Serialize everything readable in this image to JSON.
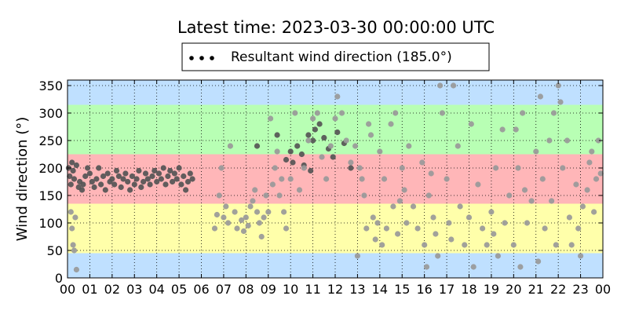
{
  "chart_data": {
    "type": "scatter",
    "title": "Latest time: 2023-03-30 00:00:00 UTC",
    "xlabel": "",
    "ylabel": "Wind direction (°)",
    "xlim": [
      0,
      24
    ],
    "ylim": [
      0,
      360
    ],
    "x_ticks": [
      0,
      1,
      2,
      3,
      4,
      5,
      6,
      7,
      8,
      9,
      10,
      11,
      12,
      13,
      14,
      15,
      16,
      17,
      18,
      19,
      20,
      21,
      22,
      23,
      24
    ],
    "x_tick_labels": [
      "00",
      "01",
      "02",
      "03",
      "04",
      "05",
      "06",
      "07",
      "08",
      "09",
      "10",
      "11",
      "12",
      "13",
      "14",
      "15",
      "16",
      "17",
      "18",
      "19",
      "20",
      "21",
      "22",
      "23",
      "00"
    ],
    "y_ticks": [
      0,
      50,
      100,
      150,
      200,
      250,
      300,
      350
    ],
    "grid": true,
    "legend": {
      "placement": "top-center",
      "label": "Resultant wind direction (185.0°)"
    },
    "sector_bands": [
      {
        "from": 0,
        "to": 45,
        "color": "#bfe0ff"
      },
      {
        "from": 45,
        "to": 135,
        "color": "#ffffaa"
      },
      {
        "from": 135,
        "to": 225,
        "color": "#ffb6b8"
      },
      {
        "from": 225,
        "to": 315,
        "color": "#b8ffb4"
      },
      {
        "from": 315,
        "to": 360,
        "color": "#bfe0ff"
      }
    ],
    "series": [
      {
        "color": "#555555",
        "points": [
          [
            0.05,
            200
          ],
          [
            0.1,
            185
          ],
          [
            0.15,
            170
          ],
          [
            0.2,
            210
          ],
          [
            0.25,
            195
          ],
          [
            0.3,
            180
          ],
          [
            0.4,
            205
          ],
          [
            0.5,
            165
          ],
          [
            0.55,
            175
          ],
          [
            0.65,
            160
          ],
          [
            0.7,
            170
          ],
          [
            0.8,
            185
          ],
          [
            0.9,
            200
          ],
          [
            1.0,
            190
          ],
          [
            1.1,
            175
          ],
          [
            1.2,
            165
          ],
          [
            1.3,
            180
          ],
          [
            1.4,
            200
          ],
          [
            1.5,
            170
          ],
          [
            1.6,
            185
          ],
          [
            1.7,
            160
          ],
          [
            1.8,
            190
          ],
          [
            1.9,
            175
          ],
          [
            2.0,
            180
          ],
          [
            2.1,
            170
          ],
          [
            2.2,
            195
          ],
          [
            2.3,
            185
          ],
          [
            2.4,
            165
          ],
          [
            2.5,
            180
          ],
          [
            2.6,
            190
          ],
          [
            2.7,
            175
          ],
          [
            2.8,
            160
          ],
          [
            2.9,
            185
          ],
          [
            3.0,
            170
          ],
          [
            3.1,
            180
          ],
          [
            3.2,
            195
          ],
          [
            3.3,
            165
          ],
          [
            3.4,
            175
          ],
          [
            3.5,
            190
          ],
          [
            3.6,
            180
          ],
          [
            3.7,
            170
          ],
          [
            3.8,
            185
          ],
          [
            3.9,
            195
          ],
          [
            4.0,
            175
          ],
          [
            4.1,
            190
          ],
          [
            4.2,
            180
          ],
          [
            4.3,
            200
          ],
          [
            4.4,
            170
          ],
          [
            4.5,
            185
          ],
          [
            4.6,
            195
          ],
          [
            4.7,
            175
          ],
          [
            4.8,
            190
          ],
          [
            4.9,
            180
          ],
          [
            5.0,
            200
          ],
          [
            5.1,
            170
          ],
          [
            5.2,
            185
          ],
          [
            5.3,
            160
          ],
          [
            5.4,
            175
          ],
          [
            5.5,
            190
          ],
          [
            5.6,
            180
          ],
          [
            9.8,
            215
          ],
          [
            10.0,
            230
          ],
          [
            10.1,
            210
          ],
          [
            10.3,
            240
          ],
          [
            10.5,
            225
          ],
          [
            10.6,
            205
          ],
          [
            10.8,
            260
          ],
          [
            11.0,
            250
          ],
          [
            11.1,
            270
          ],
          [
            11.3,
            280
          ],
          [
            11.5,
            255
          ],
          [
            11.7,
            235
          ],
          [
            11.9,
            220
          ],
          [
            12.1,
            265
          ],
          [
            12.4,
            245
          ],
          [
            12.7,
            200
          ],
          [
            8.5,
            240
          ],
          [
            9.4,
            260
          ],
          [
            10.9,
            195
          ]
        ]
      },
      {
        "color": "#999999",
        "points": [
          [
            0.15,
            120
          ],
          [
            0.2,
            90
          ],
          [
            0.25,
            60
          ],
          [
            0.3,
            50
          ],
          [
            0.35,
            110
          ],
          [
            0.4,
            15
          ],
          [
            6.6,
            90
          ],
          [
            6.7,
            115
          ],
          [
            6.8,
            150
          ],
          [
            6.9,
            200
          ],
          [
            7.0,
            110
          ],
          [
            7.1,
            130
          ],
          [
            7.2,
            100
          ],
          [
            7.3,
            240
          ],
          [
            7.5,
            120
          ],
          [
            7.6,
            90
          ],
          [
            7.8,
            105
          ],
          [
            7.9,
            85
          ],
          [
            8.0,
            110
          ],
          [
            8.1,
            95
          ],
          [
            8.2,
            130
          ],
          [
            8.3,
            140
          ],
          [
            8.4,
            160
          ],
          [
            8.5,
            120
          ],
          [
            8.6,
            100
          ],
          [
            8.7,
            75
          ],
          [
            8.8,
            110
          ],
          [
            8.9,
            150
          ],
          [
            9.0,
            120
          ],
          [
            9.1,
            290
          ],
          [
            9.2,
            170
          ],
          [
            9.3,
            200
          ],
          [
            9.4,
            230
          ],
          [
            9.5,
            150
          ],
          [
            9.6,
            180
          ],
          [
            9.7,
            120
          ],
          [
            9.8,
            90
          ],
          [
            10.0,
            180
          ],
          [
            10.2,
            300
          ],
          [
            10.4,
            160
          ],
          [
            10.6,
            200
          ],
          [
            10.8,
            250
          ],
          [
            11.0,
            290
          ],
          [
            11.2,
            300
          ],
          [
            11.4,
            220
          ],
          [
            11.6,
            180
          ],
          [
            11.8,
            240
          ],
          [
            12.0,
            290
          ],
          [
            12.1,
            330
          ],
          [
            12.3,
            300
          ],
          [
            12.5,
            250
          ],
          [
            12.7,
            210
          ],
          [
            12.9,
            240
          ],
          [
            13.0,
            40
          ],
          [
            13.1,
            200
          ],
          [
            13.2,
            180
          ],
          [
            13.3,
            150
          ],
          [
            13.4,
            90
          ],
          [
            13.5,
            280
          ],
          [
            13.6,
            260
          ],
          [
            13.7,
            110
          ],
          [
            13.8,
            70
          ],
          [
            13.9,
            100
          ],
          [
            14.0,
            230
          ],
          [
            14.1,
            60
          ],
          [
            14.2,
            180
          ],
          [
            14.3,
            90
          ],
          [
            14.5,
            280
          ],
          [
            14.6,
            130
          ],
          [
            14.7,
            300
          ],
          [
            14.8,
            80
          ],
          [
            14.9,
            140
          ],
          [
            15.0,
            200
          ],
          [
            15.1,
            160
          ],
          [
            15.2,
            100
          ],
          [
            15.3,
            240
          ],
          [
            15.5,
            130
          ],
          [
            15.7,
            90
          ],
          [
            15.9,
            210
          ],
          [
            16.0,
            60
          ],
          [
            16.1,
            20
          ],
          [
            16.2,
            150
          ],
          [
            16.3,
            190
          ],
          [
            16.4,
            110
          ],
          [
            16.5,
            80
          ],
          [
            16.6,
            40
          ],
          [
            16.7,
            350
          ],
          [
            16.8,
            300
          ],
          [
            17.0,
            180
          ],
          [
            17.1,
            100
          ],
          [
            17.2,
            70
          ],
          [
            17.3,
            350
          ],
          [
            17.5,
            240
          ],
          [
            17.6,
            130
          ],
          [
            17.8,
            60
          ],
          [
            18.0,
            110
          ],
          [
            18.1,
            280
          ],
          [
            18.2,
            20
          ],
          [
            18.4,
            170
          ],
          [
            18.6,
            90
          ],
          [
            18.8,
            60
          ],
          [
            19.0,
            120
          ],
          [
            19.1,
            80
          ],
          [
            19.2,
            200
          ],
          [
            19.3,
            40
          ],
          [
            19.5,
            270
          ],
          [
            19.6,
            100
          ],
          [
            19.8,
            150
          ],
          [
            20.0,
            60
          ],
          [
            20.1,
            270
          ],
          [
            20.2,
            200
          ],
          [
            20.3,
            20
          ],
          [
            20.4,
            300
          ],
          [
            20.5,
            160
          ],
          [
            20.6,
            100
          ],
          [
            20.8,
            140
          ],
          [
            21.0,
            230
          ],
          [
            21.1,
            30
          ],
          [
            21.2,
            330
          ],
          [
            21.3,
            180
          ],
          [
            21.4,
            90
          ],
          [
            21.6,
            250
          ],
          [
            21.7,
            140
          ],
          [
            21.8,
            300
          ],
          [
            21.9,
            60
          ],
          [
            22.0,
            350
          ],
          [
            22.1,
            320
          ],
          [
            22.2,
            200
          ],
          [
            22.4,
            250
          ],
          [
            22.5,
            110
          ],
          [
            22.6,
            60
          ],
          [
            22.8,
            170
          ],
          [
            22.9,
            90
          ],
          [
            23.0,
            40
          ],
          [
            23.1,
            130
          ],
          [
            23.3,
            160
          ],
          [
            23.4,
            210
          ],
          [
            23.5,
            230
          ],
          [
            23.6,
            120
          ],
          [
            23.7,
            180
          ],
          [
            23.8,
            250
          ],
          [
            23.9,
            190
          ]
        ]
      }
    ]
  }
}
